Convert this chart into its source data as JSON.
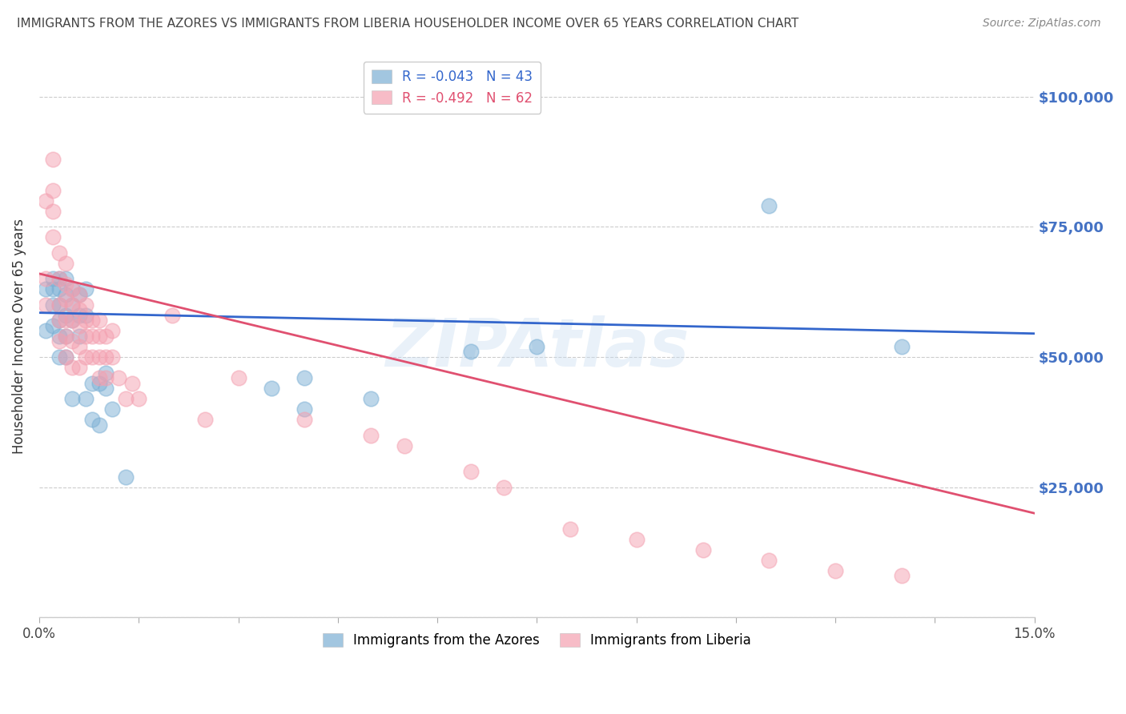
{
  "title": "IMMIGRANTS FROM THE AZORES VS IMMIGRANTS FROM LIBERIA HOUSEHOLDER INCOME OVER 65 YEARS CORRELATION CHART",
  "source": "Source: ZipAtlas.com",
  "ylabel": "Householder Income Over 65 years",
  "ytick_values": [
    0,
    25000,
    50000,
    75000,
    100000
  ],
  "right_ytick_labels": [
    "$100,000",
    "$75,000",
    "$50,000",
    "$25,000"
  ],
  "right_ytick_values": [
    100000,
    75000,
    50000,
    25000
  ],
  "xlim": [
    0.0,
    0.15
  ],
  "ylim": [
    0,
    108000
  ],
  "label_azores": "Immigrants from the Azores",
  "label_liberia": "Immigrants from Liberia",
  "color_azores": "#7bafd4",
  "color_liberia": "#f4a0b0",
  "watermark": "ZIPAtlas",
  "azores_x": [
    0.001,
    0.001,
    0.002,
    0.002,
    0.002,
    0.002,
    0.003,
    0.003,
    0.003,
    0.003,
    0.003,
    0.003,
    0.004,
    0.004,
    0.004,
    0.004,
    0.004,
    0.005,
    0.005,
    0.005,
    0.005,
    0.006,
    0.006,
    0.006,
    0.007,
    0.007,
    0.007,
    0.008,
    0.008,
    0.009,
    0.009,
    0.01,
    0.01,
    0.011,
    0.013,
    0.035,
    0.04,
    0.04,
    0.05,
    0.065,
    0.075,
    0.11,
    0.13
  ],
  "azores_y": [
    63000,
    55000,
    65000,
    63000,
    60000,
    56000,
    65000,
    63000,
    60000,
    57000,
    54000,
    50000,
    65000,
    62000,
    58000,
    54000,
    50000,
    63000,
    60000,
    57000,
    42000,
    62000,
    58000,
    54000,
    63000,
    58000,
    42000,
    45000,
    38000,
    45000,
    37000,
    47000,
    44000,
    40000,
    27000,
    44000,
    46000,
    40000,
    42000,
    51000,
    52000,
    79000,
    52000
  ],
  "liberia_x": [
    0.001,
    0.001,
    0.001,
    0.002,
    0.002,
    0.002,
    0.002,
    0.003,
    0.003,
    0.003,
    0.003,
    0.003,
    0.004,
    0.004,
    0.004,
    0.004,
    0.004,
    0.004,
    0.005,
    0.005,
    0.005,
    0.005,
    0.005,
    0.006,
    0.006,
    0.006,
    0.006,
    0.006,
    0.007,
    0.007,
    0.007,
    0.007,
    0.008,
    0.008,
    0.008,
    0.009,
    0.009,
    0.009,
    0.009,
    0.01,
    0.01,
    0.01,
    0.011,
    0.011,
    0.012,
    0.013,
    0.014,
    0.015,
    0.02,
    0.025,
    0.03,
    0.04,
    0.05,
    0.055,
    0.065,
    0.07,
    0.08,
    0.09,
    0.1,
    0.11,
    0.12,
    0.13
  ],
  "liberia_y": [
    65000,
    80000,
    60000,
    88000,
    82000,
    78000,
    73000,
    70000,
    65000,
    60000,
    57000,
    53000,
    68000,
    64000,
    61000,
    57000,
    54000,
    50000,
    63000,
    60000,
    57000,
    53000,
    48000,
    62000,
    59000,
    56000,
    52000,
    48000,
    60000,
    57000,
    54000,
    50000,
    57000,
    54000,
    50000,
    57000,
    54000,
    50000,
    46000,
    54000,
    50000,
    46000,
    55000,
    50000,
    46000,
    42000,
    45000,
    42000,
    58000,
    38000,
    46000,
    38000,
    35000,
    33000,
    28000,
    25000,
    17000,
    15000,
    13000,
    11000,
    9000,
    8000
  ],
  "azores_trend_x": [
    0.0,
    0.15
  ],
  "azores_trend_y": [
    58500,
    54500
  ],
  "liberia_trend_x": [
    0.0,
    0.15
  ],
  "liberia_trend_y": [
    66000,
    20000
  ],
  "grid_color": "#cccccc",
  "background_color": "#ffffff",
  "title_color": "#444444",
  "right_label_color": "#4472c4",
  "legend_R_azores": "R = -0.043",
  "legend_N_azores": "N = 43",
  "legend_R_liberia": "R = -0.492",
  "legend_N_liberia": "N = 62"
}
